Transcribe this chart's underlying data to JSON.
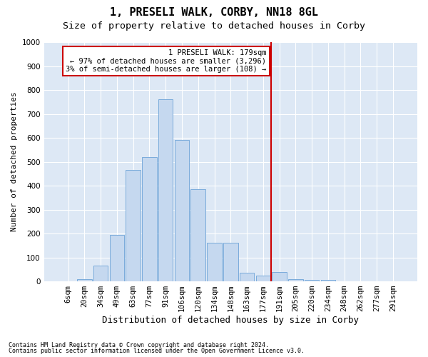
{
  "title1": "1, PRESELI WALK, CORBY, NN18 8GL",
  "title2": "Size of property relative to detached houses in Corby",
  "xlabel": "Distribution of detached houses by size in Corby",
  "ylabel": "Number of detached properties",
  "footer1": "Contains HM Land Registry data © Crown copyright and database right 2024.",
  "footer2": "Contains public sector information licensed under the Open Government Licence v3.0.",
  "categories": [
    "6sqm",
    "20sqm",
    "34sqm",
    "49sqm",
    "63sqm",
    "77sqm",
    "91sqm",
    "106sqm",
    "120sqm",
    "134sqm",
    "148sqm",
    "163sqm",
    "177sqm",
    "191sqm",
    "205sqm",
    "220sqm",
    "234sqm",
    "248sqm",
    "262sqm",
    "277sqm",
    "291sqm"
  ],
  "bar_heights": [
    0,
    10,
    65,
    195,
    465,
    520,
    760,
    590,
    385,
    160,
    160,
    35,
    25,
    40,
    10,
    5,
    5,
    0,
    0,
    0,
    0
  ],
  "bar_color": "#c5d8ef",
  "bar_edge_color": "#7aabdb",
  "background_color": "#dde8f5",
  "vline_color": "#cc0000",
  "annotation_text": "1 PRESELI WALK: 179sqm\n← 97% of detached houses are smaller (3,296)\n3% of semi-detached houses are larger (108) →",
  "annotation_box_color": "#ffffff",
  "annotation_box_edge": "#cc0000",
  "ylim": [
    0,
    1000
  ],
  "yticks": [
    0,
    100,
    200,
    300,
    400,
    500,
    600,
    700,
    800,
    900,
    1000
  ],
  "title1_fontsize": 11,
  "title2_fontsize": 9.5,
  "xlabel_fontsize": 9,
  "ylabel_fontsize": 8,
  "tick_fontsize": 7.5,
  "ann_fontsize": 7.5,
  "footer_fontsize": 6
}
